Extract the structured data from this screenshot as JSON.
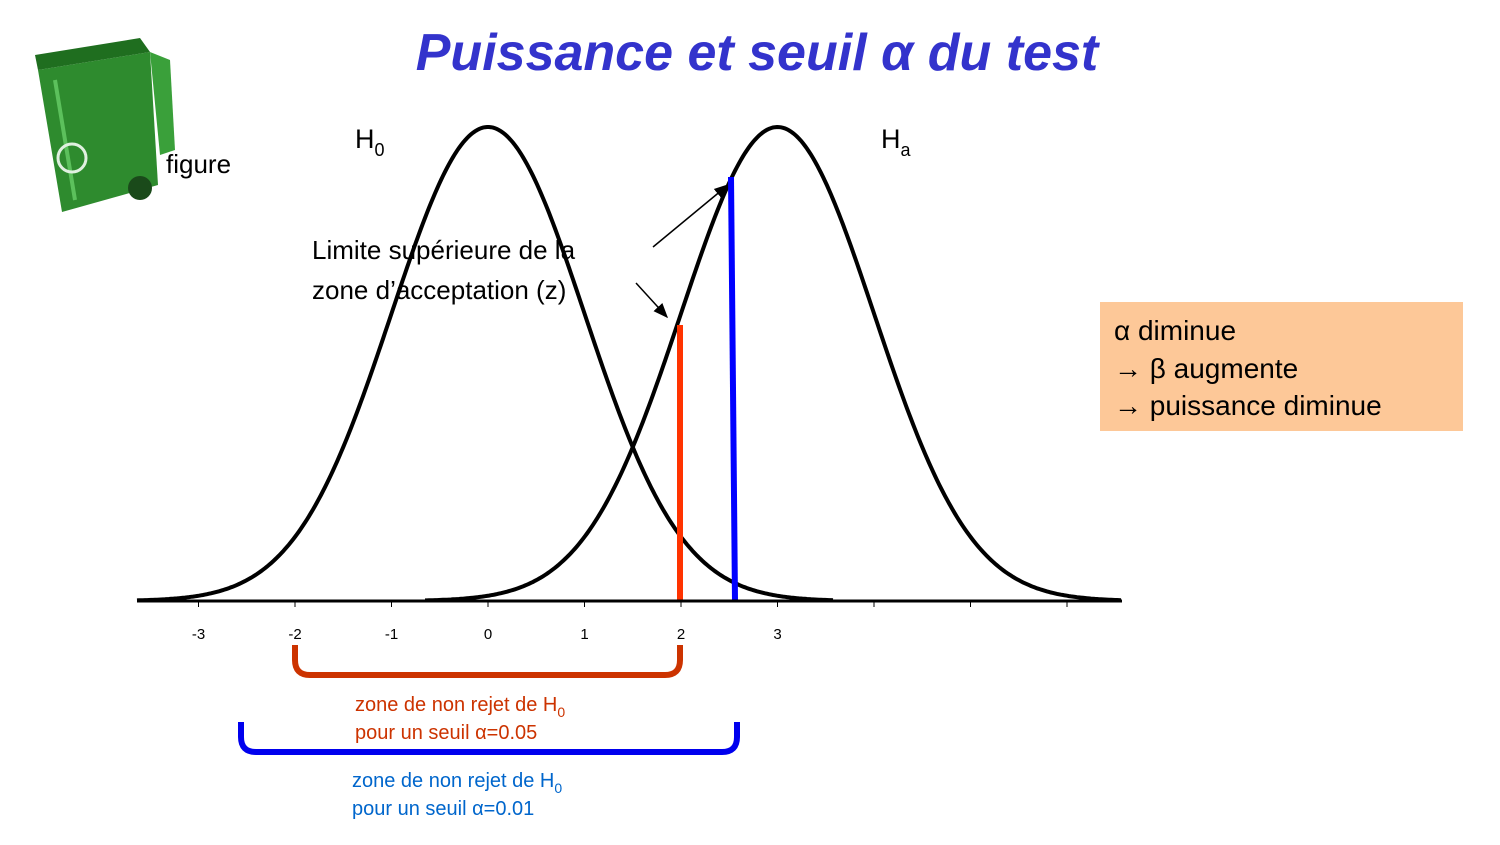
{
  "header": {
    "title": "Puissance et seuil α du test"
  },
  "icon": {
    "label": "figure"
  },
  "distributions": [
    {
      "label": "H",
      "subscript": "0"
    },
    {
      "label": "H",
      "subscript": "a"
    }
  ],
  "annotation": {
    "lines": [
      "Limite supérieure de la",
      "zone d’acceptation (z)"
    ]
  },
  "axis": {
    "tick_labels": [
      "-3",
      "-2",
      "-1",
      "0",
      "1",
      "2",
      "3"
    ]
  },
  "note_box": {
    "lines": [
      "α diminue",
      "→ β augmente",
      "→ puissance diminue"
    ]
  },
  "zones": [
    {
      "line1": "zone de non rejet de H",
      "subscript": "0",
      "line2": "pour un seuil α=0.05"
    },
    {
      "line1": "zone de non rejet de H",
      "subscript": "0",
      "line2": "pour un seuil α=0.01"
    }
  ]
}
